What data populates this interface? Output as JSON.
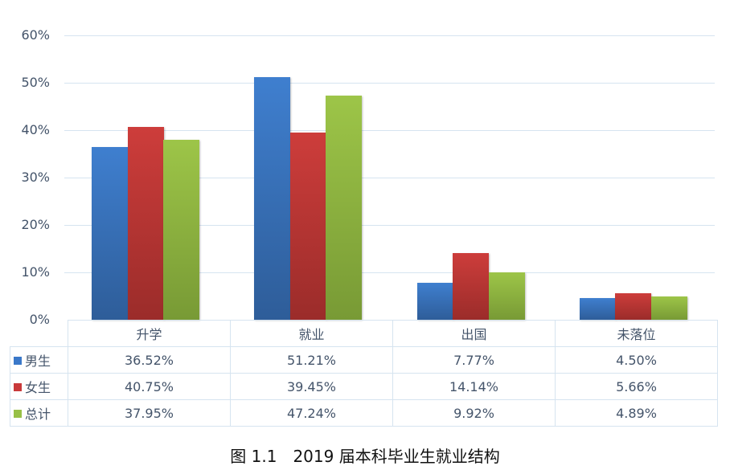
{
  "chart_data": {
    "type": "bar",
    "title": "图 1.1　2019 届本科毕业生就业结构",
    "xlabel": "",
    "ylabel": "",
    "ylim": [
      0,
      60
    ],
    "yticks": [
      "0%",
      "10%",
      "20%",
      "30%",
      "40%",
      "50%",
      "60%"
    ],
    "grid": true,
    "legend_position": "data-table",
    "categories": [
      "升学",
      "就业",
      "出国",
      "未落位"
    ],
    "series": [
      {
        "name": "男生",
        "color": "#3a78c9",
        "values": [
          36.52,
          51.21,
          7.77,
          4.5
        ],
        "labels": [
          "36.52%",
          "51.21%",
          "7.77%",
          "4.50%"
        ]
      },
      {
        "name": "女生",
        "color": "#c9393a",
        "values": [
          40.75,
          39.45,
          14.14,
          5.66
        ],
        "labels": [
          "40.75%",
          "39.45%",
          "14.14%",
          "5.66%"
        ]
      },
      {
        "name": "总计",
        "color": "#98c047",
        "values": [
          37.95,
          47.24,
          9.92,
          4.89
        ],
        "labels": [
          "37.95%",
          "47.24%",
          "9.92%",
          "4.89%"
        ]
      }
    ]
  },
  "caption": "图 1.1　2019 届本科毕业生就业结构"
}
